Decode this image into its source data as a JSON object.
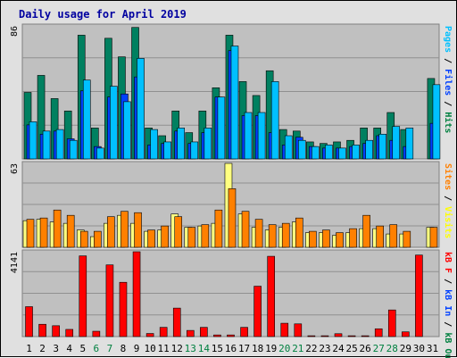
{
  "chart_data": [
    {
      "type": "bar",
      "title": "Daily usage for April 2019",
      "ylabel_parts": [
        {
          "text": "Pages",
          "color": "#00c0ff"
        },
        {
          "text": " / ",
          "color": "#000000"
        },
        {
          "text": "Files",
          "color": "#0040ff"
        },
        {
          "text": " / ",
          "color": "#000000"
        },
        {
          "text": "Hits",
          "color": "#008040"
        }
      ],
      "ymax": 86,
      "ymax_label": "86",
      "categories": [
        "1",
        "2",
        "3",
        "4",
        "5",
        "6",
        "7",
        "8",
        "9",
        "10",
        "11",
        "12",
        "13",
        "14",
        "15",
        "16",
        "17",
        "18",
        "19",
        "20",
        "21",
        "22",
        "23",
        "24",
        "25",
        "26",
        "27",
        "28",
        "29",
        "30",
        "31"
      ],
      "weekend_days": [
        "6",
        "7",
        "13",
        "14",
        "20",
        "21",
        "27",
        "28"
      ],
      "series": [
        {
          "name": "Hits",
          "color": "#008060",
          "values": [
            43,
            54,
            39,
            31,
            80,
            20,
            78,
            66,
            85,
            20,
            15,
            31,
            17,
            31,
            46,
            80,
            50,
            41,
            57,
            19,
            18,
            11,
            10,
            11,
            12,
            20,
            20,
            30,
            19,
            0,
            52
          ]
        },
        {
          "name": "Files",
          "color": "#0040ff",
          "values": [
            22,
            16,
            18,
            13,
            44,
            8,
            40,
            42,
            53,
            9,
            10,
            18,
            10,
            17,
            40,
            70,
            28,
            28,
            17,
            9,
            14,
            8,
            7,
            7,
            8,
            10,
            15,
            12,
            8,
            0,
            23
          ]
        },
        {
          "name": "Pages",
          "color": "#00c0ff",
          "values": [
            24,
            18,
            19,
            12,
            51,
            7,
            47,
            37,
            65,
            19,
            11,
            20,
            11,
            20,
            40,
            73,
            30,
            30,
            50,
            15,
            12,
            8,
            9,
            7,
            9,
            12,
            16,
            21,
            20,
            0,
            48
          ]
        }
      ]
    },
    {
      "type": "bar",
      "ylabel_parts": [
        {
          "text": "Sites",
          "color": "#ff8000"
        },
        {
          "text": " / ",
          "color": "#000000"
        },
        {
          "text": "Visits",
          "color": "#ffff00"
        }
      ],
      "ymax": 63,
      "ymax_label": "63",
      "categories": [
        "1",
        "2",
        "3",
        "4",
        "5",
        "6",
        "7",
        "8",
        "9",
        "10",
        "11",
        "12",
        "13",
        "14",
        "15",
        "16",
        "17",
        "18",
        "19",
        "20",
        "21",
        "22",
        "23",
        "24",
        "25",
        "26",
        "27",
        "28",
        "29",
        "30",
        "31"
      ],
      "series": [
        {
          "name": "Visits",
          "color": "#ffff80",
          "values": [
            20,
            21,
            19,
            18,
            13,
            8,
            18,
            24,
            18,
            12,
            13,
            25,
            15,
            16,
            18,
            63,
            25,
            15,
            13,
            15,
            19,
            11,
            11,
            9,
            11,
            14,
            14,
            10,
            10,
            0,
            15
          ]
        },
        {
          "name": "Sites",
          "color": "#ff8000",
          "values": [
            21,
            22,
            28,
            24,
            12,
            12,
            23,
            27,
            26,
            13,
            16,
            23,
            15,
            17,
            28,
            44,
            27,
            21,
            17,
            18,
            22,
            12,
            13,
            11,
            14,
            24,
            16,
            17,
            12,
            0,
            15
          ]
        }
      ]
    },
    {
      "type": "bar",
      "ylabel_parts": [
        {
          "text": "kB F",
          "color": "#ff0000"
        },
        {
          "text": " / ",
          "color": "#000000"
        },
        {
          "text": "kB In",
          "color": "#0040ff"
        },
        {
          "text": " / ",
          "color": "#000000"
        },
        {
          "text": "kB Out",
          "color": "#008040"
        }
      ],
      "ymax": 4141,
      "ymax_label": "4141",
      "categories": [
        "1",
        "2",
        "3",
        "4",
        "5",
        "6",
        "7",
        "8",
        "9",
        "10",
        "11",
        "12",
        "13",
        "14",
        "15",
        "16",
        "17",
        "18",
        "19",
        "20",
        "21",
        "22",
        "23",
        "24",
        "25",
        "26",
        "27",
        "28",
        "29",
        "30",
        "31"
      ],
      "series": [
        {
          "name": "kB F",
          "color": "#ff0000",
          "values": [
            1460,
            600,
            530,
            350,
            3940,
            260,
            3500,
            2650,
            4141,
            150,
            450,
            1390,
            300,
            450,
            80,
            80,
            450,
            2460,
            3920,
            650,
            620,
            40,
            40,
            140,
            40,
            40,
            380,
            1300,
            230,
            3980,
            0
          ]
        }
      ]
    }
  ]
}
